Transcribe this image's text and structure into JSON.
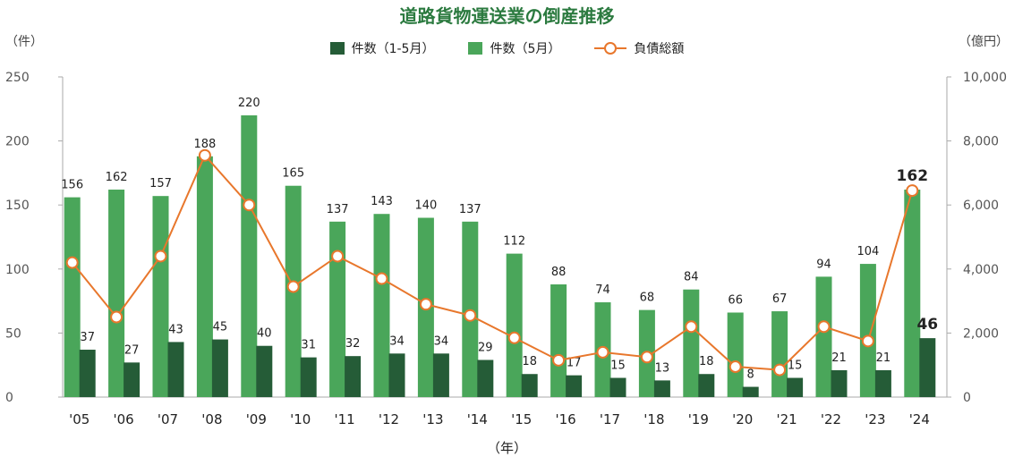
{
  "colors": {
    "dark_bar": "#255c37",
    "light_bar": "#4aa65a",
    "line": "#e8772c",
    "title": "#2b7a3f",
    "axis_text": "#555555",
    "grid": "#cfcfcf"
  },
  "chart_data": {
    "type": "bar",
    "title": "道路貨物運送業の倒産推移",
    "y_left_unit": "（件）",
    "y_right_unit": "（億円）",
    "x_unit": "（年）",
    "categories": [
      "'05",
      "'06",
      "'07",
      "'08",
      "'09",
      "'10",
      "'11",
      "'12",
      "'13",
      "'14",
      "'15",
      "'16",
      "'17",
      "'18",
      "'19",
      "'20",
      "'21",
      "'22",
      "'23",
      "'24"
    ],
    "ylim_left": [
      0,
      250
    ],
    "yticks_left": [
      "0",
      "50",
      "100",
      "150",
      "200",
      "250"
    ],
    "ylim_right": [
      0,
      10000
    ],
    "yticks_right": [
      "0",
      "2,000",
      "4,000",
      "6,000",
      "8,000",
      "10,000"
    ],
    "series": [
      {
        "name": "件数（5月）",
        "axis": "left",
        "kind": "bar",
        "values": [
          156,
          162,
          157,
          188,
          220,
          165,
          137,
          143,
          140,
          137,
          112,
          88,
          74,
          68,
          84,
          66,
          67,
          94,
          104,
          162
        ]
      },
      {
        "name": "件数（1-5月）",
        "axis": "left",
        "kind": "bar",
        "values": [
          37,
          27,
          43,
          45,
          40,
          31,
          32,
          34,
          34,
          29,
          18,
          17,
          15,
          13,
          18,
          8,
          15,
          21,
          21,
          46
        ]
      },
      {
        "name": "負債総額",
        "axis": "right",
        "kind": "line",
        "values": [
          4200,
          2500,
          4400,
          7550,
          6000,
          3450,
          4400,
          3700,
          2900,
          2550,
          1850,
          1150,
          1400,
          1250,
          2200,
          950,
          850,
          2200,
          1750,
          6450
        ]
      }
    ],
    "data_labels_light": [
      "156",
      "162",
      "157",
      "188",
      "220",
      "165",
      "137",
      "143",
      "140",
      "137",
      "112",
      "88",
      "74",
      "68",
      "84",
      "66",
      "67",
      "94",
      "104",
      "162"
    ],
    "data_labels_dark": [
      "37",
      "27",
      "43",
      "45",
      "40",
      "31",
      "32",
      "34",
      "34",
      "29",
      "18",
      "17",
      "15",
      "13",
      "18",
      "8",
      "15",
      "21",
      "21",
      "46"
    ],
    "grid": false,
    "legend": "top-center"
  }
}
